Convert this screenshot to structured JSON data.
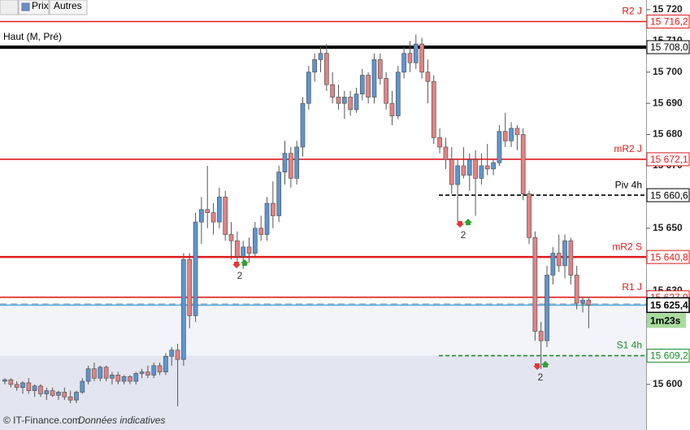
{
  "chart_data": {
    "type": "candlestick",
    "toolbar": [
      "Prix",
      "Autres"
    ],
    "footer": [
      "© IT-Finance.com",
      "Données indicatives"
    ],
    "ylim": [
      15585.4,
      15723.1
    ],
    "yticks": [
      {
        "value": 15720,
        "label": "15 720"
      },
      {
        "value": 15710,
        "label": "15 710"
      },
      {
        "value": 15700,
        "label": "15 700"
      },
      {
        "value": 15690,
        "label": "15 690"
      },
      {
        "value": 15680,
        "label": "15 680"
      },
      {
        "value": 15670,
        "label": "15 670"
      },
      {
        "value": 15660,
        "label": "15 660"
      },
      {
        "value": 15650,
        "label": "15 650"
      },
      {
        "value": 15640,
        "label": "15 640"
      },
      {
        "value": 15630,
        "label": "15 630"
      },
      {
        "value": 15620,
        "label": "15 620"
      },
      {
        "value": 15610,
        "label": "15 610"
      },
      {
        "value": 15600,
        "label": "15 600"
      }
    ],
    "grid": false,
    "up_color": "#5b95d3",
    "down_color": "#e58282",
    "ohlc": [
      [
        15601,
        15602,
        15600,
        15601.5
      ],
      [
        15601.5,
        15602,
        15599,
        15600
      ],
      [
        15600,
        15601,
        15598,
        15599
      ],
      [
        15599,
        15601,
        15597,
        15600.5
      ],
      [
        15600.5,
        15602,
        15597,
        15598
      ],
      [
        15598,
        15600,
        15596,
        15599.5
      ],
      [
        15599.5,
        15600,
        15596,
        15597
      ],
      [
        15597,
        15599,
        15595,
        15598
      ],
      [
        15598,
        15599,
        15596,
        15596.5
      ],
      [
        15596.5,
        15598,
        15595,
        15597.5
      ],
      [
        15597.5,
        15599,
        15595,
        15596
      ],
      [
        15596,
        15598,
        15594,
        15595
      ],
      [
        15595,
        15598,
        15594,
        15597.5
      ],
      [
        15597.5,
        15602,
        15597,
        15601
      ],
      [
        15601,
        15606,
        15600,
        15605
      ],
      [
        15605,
        15607,
        15601,
        15602
      ],
      [
        15602,
        15606,
        15601,
        15605.5
      ],
      [
        15605.5,
        15606,
        15601,
        15602
      ],
      [
        15602,
        15604,
        15600,
        15603
      ],
      [
        15603,
        15604,
        15600,
        15601
      ],
      [
        15601,
        15603,
        15600,
        15602.5
      ],
      [
        15602.5,
        15603,
        15600,
        15601
      ],
      [
        15601,
        15604,
        15600,
        15603.5
      ],
      [
        15603.5,
        15605,
        15602,
        15604
      ],
      [
        15604,
        15606,
        15602,
        15603
      ],
      [
        15603,
        15607,
        15602,
        15606
      ],
      [
        15606,
        15607,
        15603,
        15604
      ],
      [
        15604,
        15610,
        15603,
        15609
      ],
      [
        15609,
        15612,
        15606,
        15611
      ],
      [
        15611,
        15613,
        15593,
        15608
      ],
      [
        15608,
        15642,
        15606,
        15640
      ],
      [
        15640,
        15642,
        15618,
        15622
      ],
      [
        15622,
        15655,
        15620,
        15652
      ],
      [
        15652,
        15660,
        15645,
        15656
      ],
      [
        15656,
        15670,
        15650,
        15655
      ],
      [
        15655,
        15658,
        15648,
        15652
      ],
      [
        15652,
        15663,
        15650,
        15660
      ],
      [
        15660,
        15662,
        15646,
        15648
      ],
      [
        15648,
        15652,
        15640,
        15646
      ],
      [
        15646,
        15649,
        15638,
        15641
      ],
      [
        15641,
        15646,
        15637,
        15644
      ],
      [
        15644,
        15647,
        15639,
        15642
      ],
      [
        15642,
        15652,
        15641,
        15650
      ],
      [
        15650,
        15654,
        15646,
        15648
      ],
      [
        15648,
        15660,
        15646,
        15658
      ],
      [
        15658,
        15665,
        15650,
        15654
      ],
      [
        15654,
        15670,
        15652,
        15668
      ],
      [
        15668,
        15678,
        15664,
        15674
      ],
      [
        15674,
        15676,
        15663,
        15666
      ],
      [
        15666,
        15678,
        15664,
        15676
      ],
      [
        15676,
        15692,
        15673,
        15690
      ],
      [
        15690,
        15702,
        15688,
        15700
      ],
      [
        15700,
        15706,
        15697,
        15704
      ],
      [
        15704,
        15708,
        15700,
        15706
      ],
      [
        15706,
        15709,
        15694,
        15696
      ],
      [
        15696,
        15700,
        15690,
        15692
      ],
      [
        15692,
        15696,
        15688,
        15690
      ],
      [
        15690,
        15694,
        15685,
        15692
      ],
      [
        15692,
        15694,
        15686,
        15688
      ],
      [
        15688,
        15695,
        15687,
        15693
      ],
      [
        15693,
        15701,
        15691,
        15699
      ],
      [
        15699,
        15700,
        15690,
        15692
      ],
      [
        15692,
        15706,
        15690,
        15704
      ],
      [
        15704,
        15706,
        15696,
        15698
      ],
      [
        15698,
        15700,
        15688,
        15690
      ],
      [
        15690,
        15694,
        15683,
        15686
      ],
      [
        15686,
        15702,
        15685,
        15700
      ],
      [
        15700,
        15708,
        15698,
        15706
      ],
      [
        15706,
        15710,
        15700,
        15703
      ],
      [
        15703,
        15712,
        15701,
        15709
      ],
      [
        15709,
        15711,
        15698,
        15700
      ],
      [
        15700,
        15704,
        15690,
        15697
      ],
      [
        15697,
        15699,
        15677,
        15679
      ],
      [
        15679,
        15682,
        15674,
        15676
      ],
      [
        15676,
        15679,
        15669,
        15672
      ],
      [
        15672,
        15676,
        15661,
        15664
      ],
      [
        15664,
        15672,
        15652,
        15670
      ],
      [
        15670,
        15676,
        15666,
        15667
      ],
      [
        15667,
        15674,
        15662,
        15672
      ],
      [
        15672,
        15675,
        15654,
        15666
      ],
      [
        15666,
        15674,
        15664,
        15670
      ],
      [
        15670,
        15677,
        15667,
        15669
      ],
      [
        15669,
        15672,
        15667,
        15671
      ],
      [
        15671,
        15683,
        15670,
        15681
      ],
      [
        15681,
        15687,
        15676,
        15678
      ],
      [
        15678,
        15684,
        15676,
        15682
      ],
      [
        15682,
        15683,
        15675,
        15680
      ],
      [
        15680,
        15682,
        15659,
        15661
      ],
      [
        15661,
        15662,
        15645,
        15647
      ],
      [
        15647,
        15649,
        15614,
        15617
      ],
      [
        15617,
        15620,
        15605,
        15614
      ],
      [
        15614,
        15638,
        15612,
        15635
      ],
      [
        15635,
        15644,
        15632,
        15642
      ],
      [
        15642,
        15648,
        15636,
        15638
      ],
      [
        15638,
        15648,
        15634,
        15646
      ],
      [
        15646,
        15647,
        15632,
        15635
      ],
      [
        15635,
        15638,
        15624,
        15626
      ],
      [
        15626,
        15628,
        15623,
        15627
      ],
      [
        15627,
        15628,
        15618,
        15625.4
      ]
    ],
    "levels": [
      {
        "name": "R2 J",
        "value": 15716.2,
        "label": "15 716,2",
        "color": "#e01b1b",
        "style": "solid",
        "name_side": "right"
      },
      {
        "name": "Haut (M, Pré)",
        "value": 15708.0,
        "label": "15 708,0",
        "color": "#000000",
        "style": "bold",
        "name_side": "left"
      },
      {
        "name": "mR2 J",
        "value": 15672.1,
        "label": "15 672,1",
        "color": "#e01b1b",
        "style": "solid",
        "name_side": "right"
      },
      {
        "name": "Piv 4h",
        "value": 15660.6,
        "label": "15 660,6",
        "color": "#000000",
        "style": "dashed",
        "name_side": "right"
      },
      {
        "name": "mR2 S",
        "value": 15640.8,
        "label": "15 640,8",
        "color": "#e01b1b",
        "style": "bold",
        "name_side": "right"
      },
      {
        "name": "R1 J",
        "value": 15627.9,
        "label": "15 627,9",
        "color": "#e01b1b",
        "style": "solid",
        "name_side": "right"
      },
      {
        "name": "S1 4h",
        "value": 15609.2,
        "label": "15 609,2",
        "color": "#1a8f2a",
        "style": "dashed",
        "name_side": "right"
      }
    ],
    "current": {
      "value": 15625.4,
      "label": "15 625,4",
      "timer": "1m23s",
      "color": "#49a3d6"
    },
    "signals": [
      "2",
      "2",
      "2"
    ]
  }
}
